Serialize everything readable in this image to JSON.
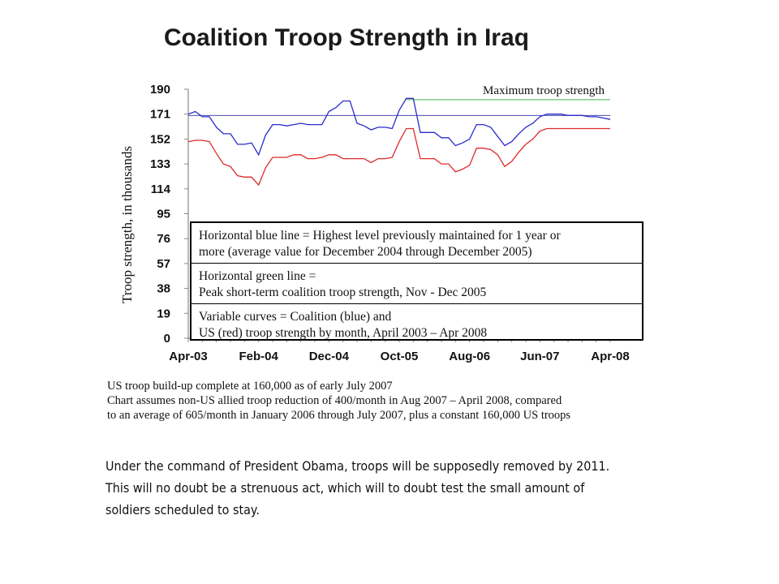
{
  "page": {
    "title": "Coalition Troop Strength in Iraq"
  },
  "chart_data": {
    "type": "line",
    "title": "Coalition Troop Strength in Iraq",
    "ylabel": "Troop strength, in thousands",
    "xlabel": "",
    "ylim": [
      0,
      190
    ],
    "yticks": [
      "190",
      "171",
      "152",
      "133",
      "114",
      "95",
      "76",
      "57",
      "38",
      "19",
      "0"
    ],
    "xticks": [
      "Apr-03",
      "Feb-04",
      "Dec-04",
      "Oct-05",
      "Aug-06",
      "Jun-07",
      "Apr-08"
    ],
    "x": [
      "Apr-03",
      "May-03",
      "Jun-03",
      "Jul-03",
      "Aug-03",
      "Sep-03",
      "Oct-03",
      "Nov-03",
      "Dec-03",
      "Jan-04",
      "Feb-04",
      "Mar-04",
      "Apr-04",
      "May-04",
      "Jun-04",
      "Jul-04",
      "Aug-04",
      "Sep-04",
      "Oct-04",
      "Nov-04",
      "Dec-04",
      "Jan-05",
      "Feb-05",
      "Mar-05",
      "Apr-05",
      "May-05",
      "Jun-05",
      "Jul-05",
      "Aug-05",
      "Sep-05",
      "Oct-05",
      "Nov-05",
      "Dec-05",
      "Jan-06",
      "Feb-06",
      "Mar-06",
      "Apr-06",
      "May-06",
      "Jun-06",
      "Jul-06",
      "Aug-06",
      "Sep-06",
      "Oct-06",
      "Nov-06",
      "Dec-06",
      "Jan-07",
      "Feb-07",
      "Mar-07",
      "Apr-07",
      "May-07",
      "Jun-07",
      "Jul-07",
      "Aug-07",
      "Sep-07",
      "Oct-07",
      "Nov-07",
      "Dec-07",
      "Jan-08",
      "Feb-08",
      "Mar-08",
      "Apr-08"
    ],
    "series": [
      {
        "name": "Coalition",
        "color": "#2b2bcc",
        "values": [
          171,
          173,
          169,
          169,
          161,
          156,
          156,
          148,
          148,
          149,
          140,
          155,
          163,
          163,
          162,
          163,
          164,
          163,
          163,
          163,
          173,
          176,
          181,
          181,
          164,
          162,
          159,
          161,
          161,
          160,
          174,
          183,
          183,
          157,
          157,
          157,
          153,
          153,
          147,
          149,
          152,
          163,
          163,
          161,
          154,
          147,
          150,
          156,
          161,
          164,
          169,
          171,
          171,
          171,
          170,
          170,
          170,
          169,
          169,
          168,
          167
        ]
      },
      {
        "name": "US",
        "color": "#dd2a2a",
        "values": [
          150,
          151,
          151,
          150,
          141,
          133,
          131,
          124,
          123,
          123,
          117,
          130,
          138,
          138,
          138,
          140,
          140,
          137,
          137,
          138,
          140,
          140,
          137,
          137,
          137,
          137,
          134,
          137,
          137,
          138,
          150,
          160,
          160,
          137,
          137,
          137,
          133,
          133,
          127,
          129,
          132,
          145,
          145,
          144,
          140,
          131,
          135,
          142,
          148,
          152,
          158,
          160,
          160,
          160,
          160,
          160,
          160,
          160,
          160,
          160,
          160
        ]
      }
    ],
    "reference_lines": [
      {
        "name": "Horizontal blue line",
        "value": 170,
        "color": "#4a4ab0"
      },
      {
        "name": "Horizontal green line",
        "value": 182,
        "color": "#4caf50",
        "label": "Maximum troop strength"
      }
    ],
    "legend": {
      "placement": "lower-right",
      "rows": [
        [
          "Horizontal blue line = Highest level previously maintained for 1 year or",
          "more (average value for December 2004 through December 2005)"
        ],
        [
          "Horizontal green line =",
          "Peak short-term coalition troop strength, Nov - Dec 2005"
        ],
        [
          "Variable curves = Coalition (blue) and",
          "US (red) troop strength by month, April 2003 – Apr 2008"
        ]
      ]
    },
    "grid": false
  },
  "notes": [
    "US troop build-up complete at 160,000 as of early July 2007",
    "Chart assumes non-US allied troop reduction of 400/month in Aug 2007 – April 2008, compared",
    "to an average of 605/month in January 2006 through July 2007, plus a constant 160,000 US troops"
  ],
  "caption": [
    "Under the command of President Obama, troops will be supposedly  removed by 2011.",
    "This will no doubt be a strenuous act, which will to doubt test the small amount of",
    "soldiers scheduled to stay."
  ]
}
